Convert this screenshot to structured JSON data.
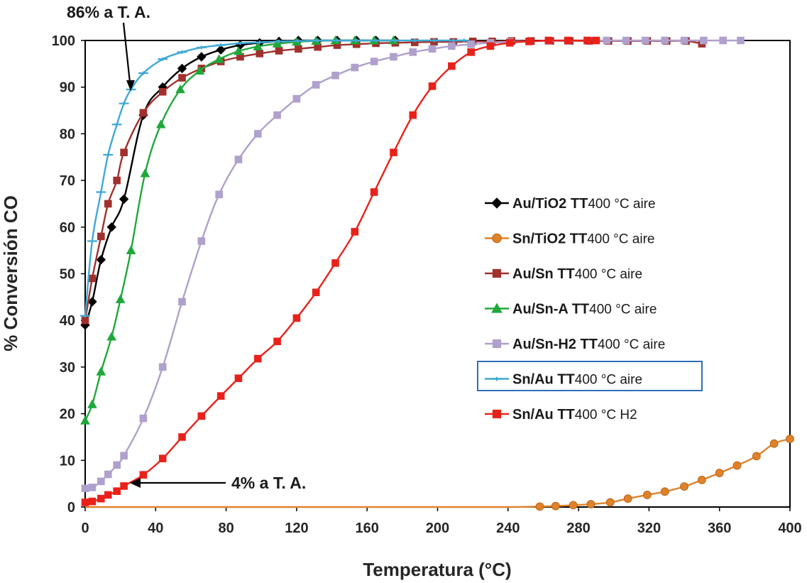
{
  "chart_data": {
    "type": "line",
    "title": "",
    "xlabel": "Temperatura (°C)",
    "ylabel": "% Conversión CO",
    "xlim": [
      0,
      400
    ],
    "ylim": [
      0,
      100
    ],
    "xticks": [
      "0",
      "40",
      "80",
      "120",
      "160",
      "200",
      "240",
      "280",
      "320",
      "360",
      "400"
    ],
    "yticks": [
      "0",
      "10",
      "20",
      "30",
      "40",
      "50",
      "60",
      "70",
      "80",
      "90",
      "100"
    ],
    "legend_position": "center-right",
    "series": [
      {
        "name": "Au/TiO2 TT400 °C aire",
        "label_main": "Au/TiO2 TT",
        "label_rest": "400 °C aire",
        "color": "#000000",
        "marker": "diamond",
        "x": [
          0,
          4,
          9,
          15,
          22,
          33,
          44,
          55,
          66,
          77,
          88,
          99,
          110,
          121,
          132,
          143,
          154,
          165,
          176
        ],
        "y": [
          39,
          44,
          53,
          60,
          66,
          84,
          90,
          94,
          96.5,
          98,
          99,
          99.5,
          99.8,
          100,
          100,
          100,
          100,
          100,
          100
        ]
      },
      {
        "name": "Sn/TiO2 TT400 °C aire",
        "label_main": "Sn/TiO2 TT",
        "label_rest": "400 °C aire",
        "color": "#E0822A",
        "marker": "circle",
        "x": [
          0,
          40,
          80,
          120,
          160,
          200,
          240,
          258,
          267,
          277,
          287,
          298,
          308,
          319,
          329,
          340,
          350,
          360,
          370,
          381,
          391,
          400
        ],
        "y": [
          0,
          0,
          0,
          0,
          0,
          0,
          0,
          0.1,
          0.2,
          0.4,
          0.6,
          1.0,
          1.8,
          2.6,
          3.3,
          4.4,
          5.8,
          7.3,
          8.9,
          10.9,
          13.6,
          14.6
        ]
      },
      {
        "name": "Au/Sn TT400 °C aire",
        "label_main": "Au/Sn TT",
        "label_rest": "400 °C aire",
        "color": "#A0312E",
        "marker": "square",
        "x": [
          0,
          4,
          9,
          13,
          18,
          22,
          33,
          44,
          55,
          66,
          77,
          88,
          99,
          110,
          121,
          132,
          143,
          154,
          165,
          176,
          187,
          198,
          209,
          220,
          231,
          242,
          253,
          264,
          275,
          286,
          297,
          308,
          319,
          330,
          341,
          350
        ],
        "y": [
          40,
          49,
          58,
          65,
          70,
          76,
          84.5,
          89,
          92,
          94,
          95.5,
          96.5,
          97.2,
          97.8,
          98.2,
          98.6,
          99,
          99.2,
          99.4,
          99.5,
          99.6,
          99.7,
          99.7,
          99.8,
          99.8,
          99.9,
          99.9,
          99.9,
          99.9,
          99.9,
          99.9,
          99.9,
          99.9,
          99.9,
          99.9,
          99.3
        ]
      },
      {
        "name": "Au/Sn-A TT400 °C aire",
        "label_main": "Au/Sn-A TT",
        "label_rest": "400 °C aire",
        "color": "#1FA83A",
        "marker": "triangle",
        "x": [
          0,
          4,
          9,
          15,
          20,
          26,
          34,
          43,
          54,
          65,
          76,
          87,
          98,
          109,
          120,
          131,
          142,
          153,
          164,
          175
        ],
        "y": [
          18.5,
          22,
          29,
          36.5,
          44.5,
          55,
          71.5,
          82,
          89.5,
          93.5,
          96,
          97.7,
          98.7,
          99.3,
          99.7,
          99.9,
          100,
          100,
          100,
          100
        ]
      },
      {
        "name": "Au/Sn-H2 TT400 °C aire",
        "label_main": "Au/Sn-H2 TT",
        "label_rest": "400 °C aire",
        "color": "#AFA0CC",
        "marker": "square",
        "x": [
          0,
          4,
          9,
          13,
          18,
          22,
          33,
          44,
          55,
          66,
          76,
          87,
          98,
          109,
          120,
          131,
          142,
          153,
          164,
          175,
          186,
          197,
          208,
          219,
          230,
          241,
          252,
          263,
          274,
          285,
          296,
          307,
          318,
          329,
          340,
          351,
          362,
          372
        ],
        "y": [
          4,
          4.2,
          5.5,
          7,
          9,
          11,
          19,
          30,
          44,
          57,
          67,
          74.5,
          80,
          84,
          87.5,
          90.5,
          92.5,
          94.2,
          95.5,
          96.5,
          97.5,
          98.2,
          98.8,
          99.2,
          99.5,
          99.7,
          99.8,
          99.9,
          99.9,
          100,
          100,
          100,
          100,
          100,
          100,
          100,
          100,
          100
        ]
      },
      {
        "name": "Sn/Au TT400 °C aire",
        "label_main": "Sn/Au TT",
        "label_rest": "400 °C aire",
        "color": "#3FA9D6",
        "marker": "plus",
        "x": [
          0,
          4,
          9,
          13,
          18,
          22,
          26,
          33,
          44,
          55,
          66,
          77,
          88,
          99,
          110,
          121,
          132,
          143,
          154,
          165,
          176,
          187,
          198,
          209,
          215
        ],
        "y": [
          41,
          57,
          67.5,
          75.5,
          82,
          86.5,
          89.5,
          93,
          96,
          97.5,
          98.5,
          99,
          99.4,
          99.6,
          99.8,
          99.9,
          100,
          100,
          100,
          100,
          100,
          100,
          100,
          100,
          100
        ]
      },
      {
        "name": "Sn/Au TT400 °C H2",
        "label_main": "Sn/Au TT",
        "label_rest": "400 °C H2",
        "color": "#E8221A",
        "marker": "square",
        "x": [
          0,
          4,
          9,
          13,
          18,
          22,
          33,
          44,
          55,
          66,
          77,
          87,
          98,
          109,
          120,
          131,
          142,
          153,
          164,
          175,
          186,
          197,
          208,
          219,
          230,
          241,
          252,
          263,
          274,
          285,
          290
        ],
        "y": [
          1,
          1.2,
          1.8,
          2.6,
          3.4,
          4.5,
          6.9,
          10.4,
          15,
          19.5,
          23.8,
          27.6,
          31.8,
          35.5,
          40.5,
          46,
          52.3,
          59,
          67.5,
          76,
          84,
          90.2,
          94.5,
          97.5,
          98.8,
          99.5,
          99.8,
          100,
          100,
          100,
          100
        ]
      }
    ],
    "annotations": [
      {
        "text": "86% a T. A.",
        "x": 25,
        "y": 88
      },
      {
        "text": "4% a T. A.",
        "x": 20,
        "y": 4
      }
    ]
  }
}
